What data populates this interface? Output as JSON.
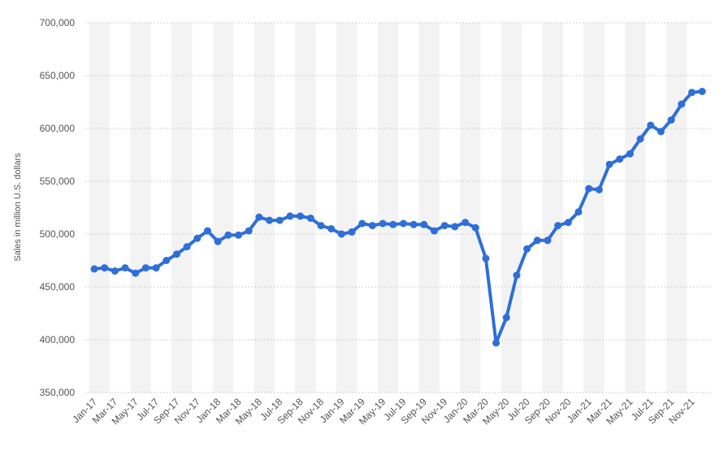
{
  "chart_data": {
    "type": "line",
    "y_label": "Sales in million U.S. dollars",
    "categories": [
      "Jan-17",
      null,
      "Mar-17",
      null,
      "May-17",
      null,
      "Jul-17",
      null,
      "Sep-17",
      null,
      "Nov-17",
      null,
      "Jan-18",
      null,
      "Mar-18",
      null,
      "May-18",
      null,
      "Jul-18",
      null,
      "Sep-18",
      null,
      "Nov-18",
      null,
      "Jan-19",
      null,
      "Mar-19",
      null,
      "May-19",
      null,
      "Jul-19",
      null,
      "Sep-19",
      null,
      "Nov-19",
      null,
      "Jan-20",
      null,
      "Mar-20",
      null,
      "May-20",
      null,
      "Jul-20",
      null,
      "Sep-20",
      null,
      "Nov-20",
      null,
      "Jan-21",
      null,
      "Mar-21",
      null,
      "May-21",
      null,
      "Jul-21",
      null,
      "Sep-21",
      null,
      "Nov-21",
      null
    ],
    "values": [
      467000,
      468000,
      465000,
      468000,
      463000,
      468000,
      468000,
      475000,
      481000,
      488000,
      496000,
      503000,
      493000,
      499000,
      499000,
      503000,
      516000,
      513000,
      513000,
      517000,
      517000,
      515000,
      508000,
      505000,
      500000,
      502000,
      510000,
      508000,
      510000,
      509000,
      510000,
      509000,
      509000,
      503000,
      508000,
      507000,
      511000,
      506000,
      477000,
      397000,
      421000,
      461000,
      486000,
      494000,
      494000,
      508000,
      511000,
      521000,
      543000,
      542000,
      566000,
      571000,
      576000,
      590000,
      603000,
      597000,
      608000,
      623000,
      634000,
      635000
    ],
    "color": "#2e6fd8",
    "ylim": [
      350000,
      700000
    ],
    "yticks": [
      {
        "value": 350000,
        "label": "350,000"
      },
      {
        "value": 400000,
        "label": "400,000"
      },
      {
        "value": 450000,
        "label": "450,000"
      },
      {
        "value": 500000,
        "label": "500,000"
      },
      {
        "value": 550000,
        "label": "550,000"
      },
      {
        "value": 600000,
        "label": "600,000"
      },
      {
        "value": 650000,
        "label": "650,000"
      },
      {
        "value": 700000,
        "label": "700,000"
      }
    ],
    "grid": true
  }
}
